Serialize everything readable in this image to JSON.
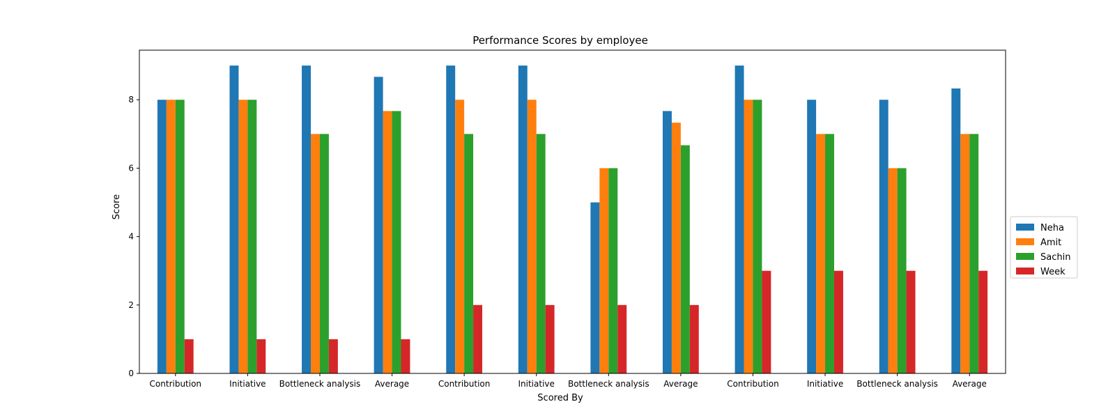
{
  "chart_data": {
    "type": "bar",
    "title": "Performance Scores by employee",
    "xlabel": "Scored By",
    "ylabel": "Score",
    "ylim": [
      0,
      9.45
    ],
    "yticks": [
      0,
      2,
      4,
      6,
      8
    ],
    "categories": [
      "Contribution",
      "Initiative",
      "Bottleneck analysis",
      "Average",
      "Contribution",
      "Initiative",
      "Bottleneck analysis",
      "Average",
      "Contribution",
      "Initiative",
      "Bottleneck analysis",
      "Average"
    ],
    "series": [
      {
        "name": "Neha",
        "color": "#1f77b4",
        "values": [
          8,
          9,
          9,
          8.67,
          9,
          9,
          5,
          7.67,
          9,
          8,
          8,
          8.33
        ]
      },
      {
        "name": "Amit",
        "color": "#ff7f0e",
        "values": [
          8,
          8,
          7,
          7.67,
          8,
          8,
          6,
          7.33,
          8,
          7,
          6,
          7
        ]
      },
      {
        "name": "Sachin",
        "color": "#2ca02c",
        "values": [
          8,
          8,
          7,
          7.67,
          7,
          7,
          6,
          6.67,
          8,
          7,
          6,
          7
        ]
      },
      {
        "name": "Week",
        "color": "#d62728",
        "values": [
          1,
          1,
          1,
          1,
          2,
          2,
          2,
          2,
          3,
          3,
          3,
          3
        ]
      }
    ],
    "legend_position": "right",
    "grid": false
  }
}
